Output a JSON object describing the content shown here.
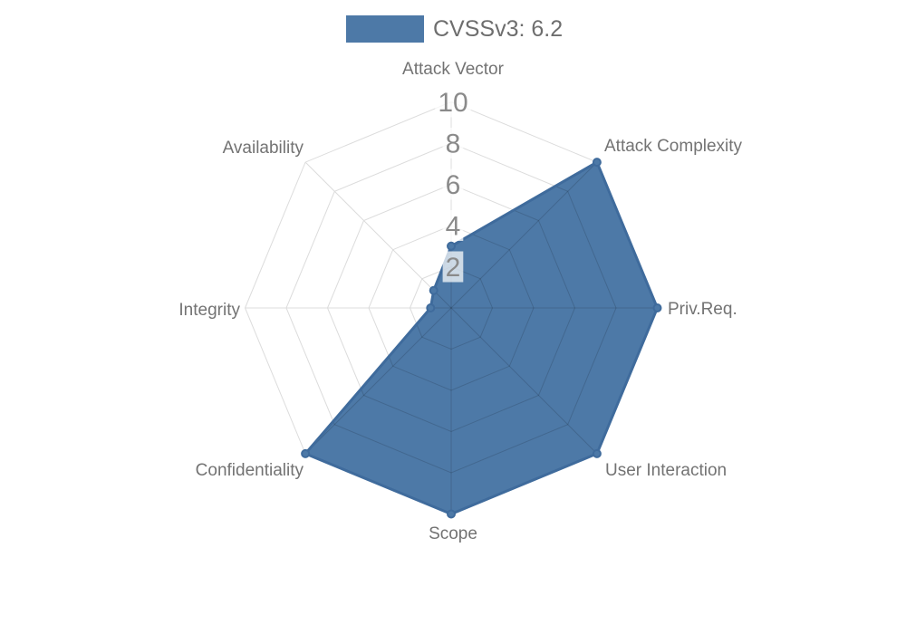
{
  "legend": {
    "label": "CVSSv3: 6.2",
    "swatch_color": "#4d79a7"
  },
  "chart_data": {
    "type": "radar",
    "title": "",
    "categories": [
      "Attack Vector",
      "Attack Complexity",
      "Priv.Req.",
      "User Interaction",
      "Scope",
      "Confidentiality",
      "Integrity",
      "Availability"
    ],
    "series": [
      {
        "name": "CVSSv3: 6.2",
        "values": [
          3,
          10,
          10,
          10,
          10,
          10,
          1,
          1.2
        ]
      }
    ],
    "ticks": [
      2,
      4,
      6,
      8,
      10
    ],
    "rlim": [
      0,
      10
    ],
    "grid": "polygon-web",
    "legend_position": "top",
    "colors": {
      "fill": "#4d79a7",
      "stroke": "#3f6b9c",
      "dot_fill": "#4d79a7",
      "dot_stroke": "#3f6b9c",
      "grid": "#dcdcdc",
      "grid_inner": "rgba(0,0,0,0.14)",
      "tick_text": "#8a8a8a",
      "tick_backdrop": "rgba(255,255,255,0.72)",
      "label_text": "#737373"
    }
  }
}
